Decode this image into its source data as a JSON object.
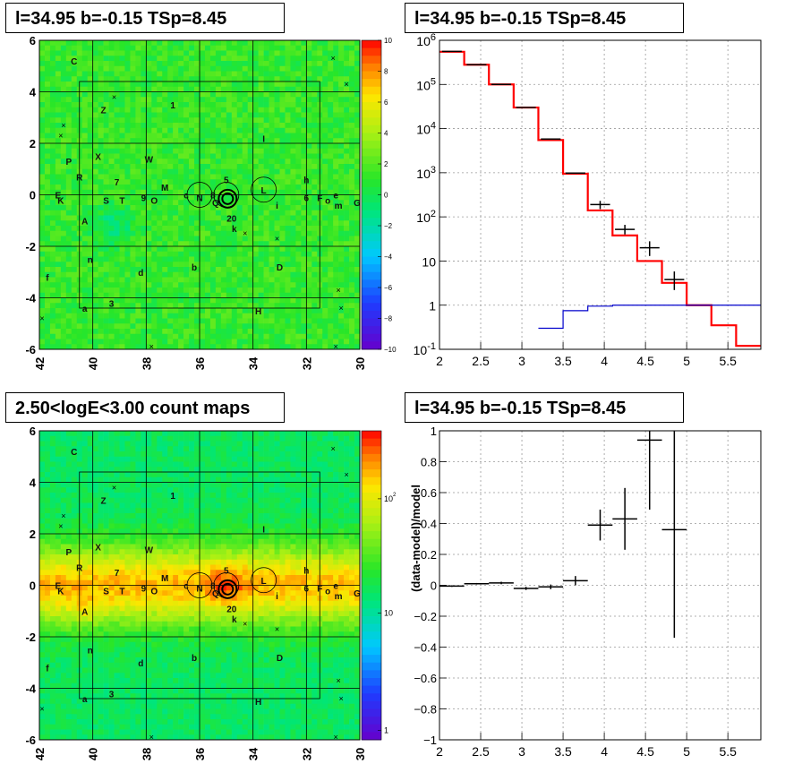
{
  "panels": {
    "top_left_title": "l=34.95 b=-0.15 TSp=8.45",
    "top_right_title": "l=34.95 b=-0.15 TSp=8.45",
    "bottom_left_title": "2.50<logE<3.00 count maps",
    "bottom_right_title": "l=34.95 b=-0.15 TSp=8.45"
  },
  "chart_data": [
    {
      "type": "heatmap",
      "xlim": [
        42,
        30
      ],
      "ylim": [
        -6,
        6
      ],
      "x_ticks": [
        "42",
        "40",
        "38",
        "36",
        "34",
        "32",
        "30"
      ],
      "y_ticks": [
        "6",
        "4",
        "2",
        "0",
        "-2",
        "-4",
        "-6"
      ],
      "colorbar_ticks": [
        "10",
        "8",
        "6",
        "4",
        "2",
        "0",
        "−2",
        "−4",
        "−6",
        "−8",
        "−10"
      ],
      "colorbar_range": [
        -10,
        10
      ],
      "source_labels": [
        {
          "t": "C",
          "x": 40.7,
          "y": 5.2
        },
        {
          "t": "1",
          "x": 37.0,
          "y": 3.5
        },
        {
          "t": "Z",
          "x": 39.6,
          "y": 3.3
        },
        {
          "t": "I",
          "x": 33.6,
          "y": 2.2
        },
        {
          "t": "P",
          "x": 40.9,
          "y": 1.3
        },
        {
          "t": "X",
          "x": 39.8,
          "y": 1.5
        },
        {
          "t": "W",
          "x": 37.9,
          "y": 1.4
        },
        {
          "t": "M",
          "x": 37.3,
          "y": 0.3
        },
        {
          "t": "R",
          "x": 40.5,
          "y": 0.7
        },
        {
          "t": "7",
          "x": 39.1,
          "y": 0.5
        },
        {
          "t": "5",
          "x": 35.0,
          "y": 0.6
        },
        {
          "t": "h",
          "x": 32.0,
          "y": 0.6
        },
        {
          "t": "E",
          "x": 41.3,
          "y": 0.0
        },
        {
          "t": "K",
          "x": 41.2,
          "y": -0.2
        },
        {
          "t": "S",
          "x": 39.5,
          "y": -0.2
        },
        {
          "t": "T",
          "x": 38.9,
          "y": -0.2
        },
        {
          "t": "9",
          "x": 38.1,
          "y": -0.1
        },
        {
          "t": "O",
          "x": 37.7,
          "y": -0.2
        },
        {
          "t": "c",
          "x": 36.5,
          "y": 0.0
        },
        {
          "t": "N",
          "x": 36.0,
          "y": -0.1
        },
        {
          "t": "8",
          "x": 35.5,
          "y": 0.0
        },
        {
          "t": "Q",
          "x": 35.4,
          "y": -0.3
        },
        {
          "t": "L",
          "x": 33.6,
          "y": 0.2
        },
        {
          "t": "6",
          "x": 32.0,
          "y": -0.1
        },
        {
          "t": "F",
          "x": 31.5,
          "y": -0.1
        },
        {
          "t": "o",
          "x": 31.2,
          "y": -0.2
        },
        {
          "t": "e",
          "x": 30.9,
          "y": 0.0
        },
        {
          "t": "m",
          "x": 30.8,
          "y": -0.4
        },
        {
          "t": "G",
          "x": 30.1,
          "y": -0.3
        },
        {
          "t": "A",
          "x": 40.3,
          "y": -1.0
        },
        {
          "t": "i",
          "x": 33.1,
          "y": -0.4
        },
        {
          "t": "20",
          "x": 34.8,
          "y": -0.9
        },
        {
          "t": "k",
          "x": 34.7,
          "y": -1.3
        },
        {
          "t": "n",
          "x": 40.1,
          "y": -2.5
        },
        {
          "t": "f",
          "x": 41.7,
          "y": -3.2
        },
        {
          "t": "d",
          "x": 38.2,
          "y": -3.0
        },
        {
          "t": "b",
          "x": 36.2,
          "y": -2.8
        },
        {
          "t": "D",
          "x": 33.0,
          "y": -2.8
        },
        {
          "t": "3",
          "x": 39.3,
          "y": -4.2
        },
        {
          "t": "a",
          "x": 40.3,
          "y": -4.4
        },
        {
          "t": "H",
          "x": 33.8,
          "y": -4.5
        }
      ]
    },
    {
      "type": "line",
      "xlabel": "",
      "ylabel": "",
      "xlim": [
        2,
        5.9
      ],
      "ylim": [
        0.1,
        1000000
      ],
      "log_y": true,
      "x_ticks": [
        "2",
        "2.5",
        "3",
        "3.5",
        "4",
        "4.5",
        "5",
        "5.5"
      ],
      "y_ticks": [
        "10^6",
        "10^5",
        "10^4",
        "10^3",
        "10^2",
        "10",
        "1",
        "10^-1"
      ],
      "bin_edges": [
        2.0,
        2.3,
        2.6,
        2.9,
        3.2,
        3.5,
        3.8,
        4.1,
        4.4,
        4.7,
        5.0,
        5.3,
        5.6,
        5.9
      ],
      "series": [
        {
          "color": "#ff0000",
          "values": [
            550000,
            280000,
            100000,
            30000,
            5500,
            950,
            140,
            38,
            10,
            3.2,
            1.0,
            0.35,
            0.12
          ]
        },
        {
          "color": "#0000cc",
          "values": [
            null,
            null,
            null,
            null,
            0.3,
            0.75,
            0.95,
            1.0,
            1.0,
            1.0,
            1.0,
            1.0,
            1.0
          ]
        },
        {
          "color": "#000000",
          "values": [
            560000,
            280000,
            100000,
            30000,
            5800,
            980,
            190,
            52,
            20,
            3.8,
            null,
            null,
            null
          ],
          "errors_lo": [
            null,
            null,
            null,
            null,
            null,
            null,
            150,
            40,
            13,
            2.2,
            null,
            null,
            null
          ],
          "errors_hi": [
            null,
            null,
            null,
            null,
            null,
            null,
            230,
            66,
            28,
            5.8,
            null,
            null,
            null
          ]
        }
      ]
    },
    {
      "type": "heatmap",
      "xlim": [
        42,
        30
      ],
      "ylim": [
        -6,
        6
      ],
      "log_z": true,
      "x_ticks": [
        "42",
        "40",
        "38",
        "36",
        "34",
        "32",
        "30"
      ],
      "y_ticks": [
        "6",
        "4",
        "2",
        "0",
        "-2",
        "-4",
        "-6"
      ],
      "colorbar_ticks": [
        "10^2",
        "10",
        "1"
      ]
    },
    {
      "type": "scatter",
      "xlabel": "",
      "ylabel": "(data-model)/model",
      "xlim": [
        2,
        5.9
      ],
      "ylim": [
        -1,
        1
      ],
      "x_ticks": [
        "2",
        "2.5",
        "3",
        "3.5",
        "4",
        "4.5",
        "5",
        "5.5"
      ],
      "y_ticks": [
        "1",
        "0.8",
        "0.6",
        "0.4",
        "0.2",
        "0",
        "−0.2",
        "−0.4",
        "−0.6",
        "−0.8",
        "−1"
      ],
      "points": [
        {
          "x": 2.15,
          "y": -0.005,
          "xerr": 0.15,
          "yerr": 0.005
        },
        {
          "x": 2.45,
          "y": 0.01,
          "xerr": 0.15,
          "yerr": 0.005
        },
        {
          "x": 2.75,
          "y": 0.015,
          "xerr": 0.15,
          "yerr": 0.008
        },
        {
          "x": 3.05,
          "y": -0.02,
          "xerr": 0.15,
          "yerr": 0.01
        },
        {
          "x": 3.35,
          "y": -0.01,
          "xerr": 0.15,
          "yerr": 0.015
        },
        {
          "x": 3.65,
          "y": 0.03,
          "xerr": 0.15,
          "yerr": 0.03
        },
        {
          "x": 3.95,
          "y": 0.39,
          "xerr": 0.15,
          "yerr": 0.1
        },
        {
          "x": 4.25,
          "y": 0.43,
          "xerr": 0.15,
          "yerr": 0.2
        },
        {
          "x": 4.55,
          "y": 0.94,
          "xerr": 0.15,
          "yerr": 0.45
        },
        {
          "x": 4.85,
          "y": 0.36,
          "xerr": 0.15,
          "yerr": 0.7
        }
      ]
    }
  ]
}
